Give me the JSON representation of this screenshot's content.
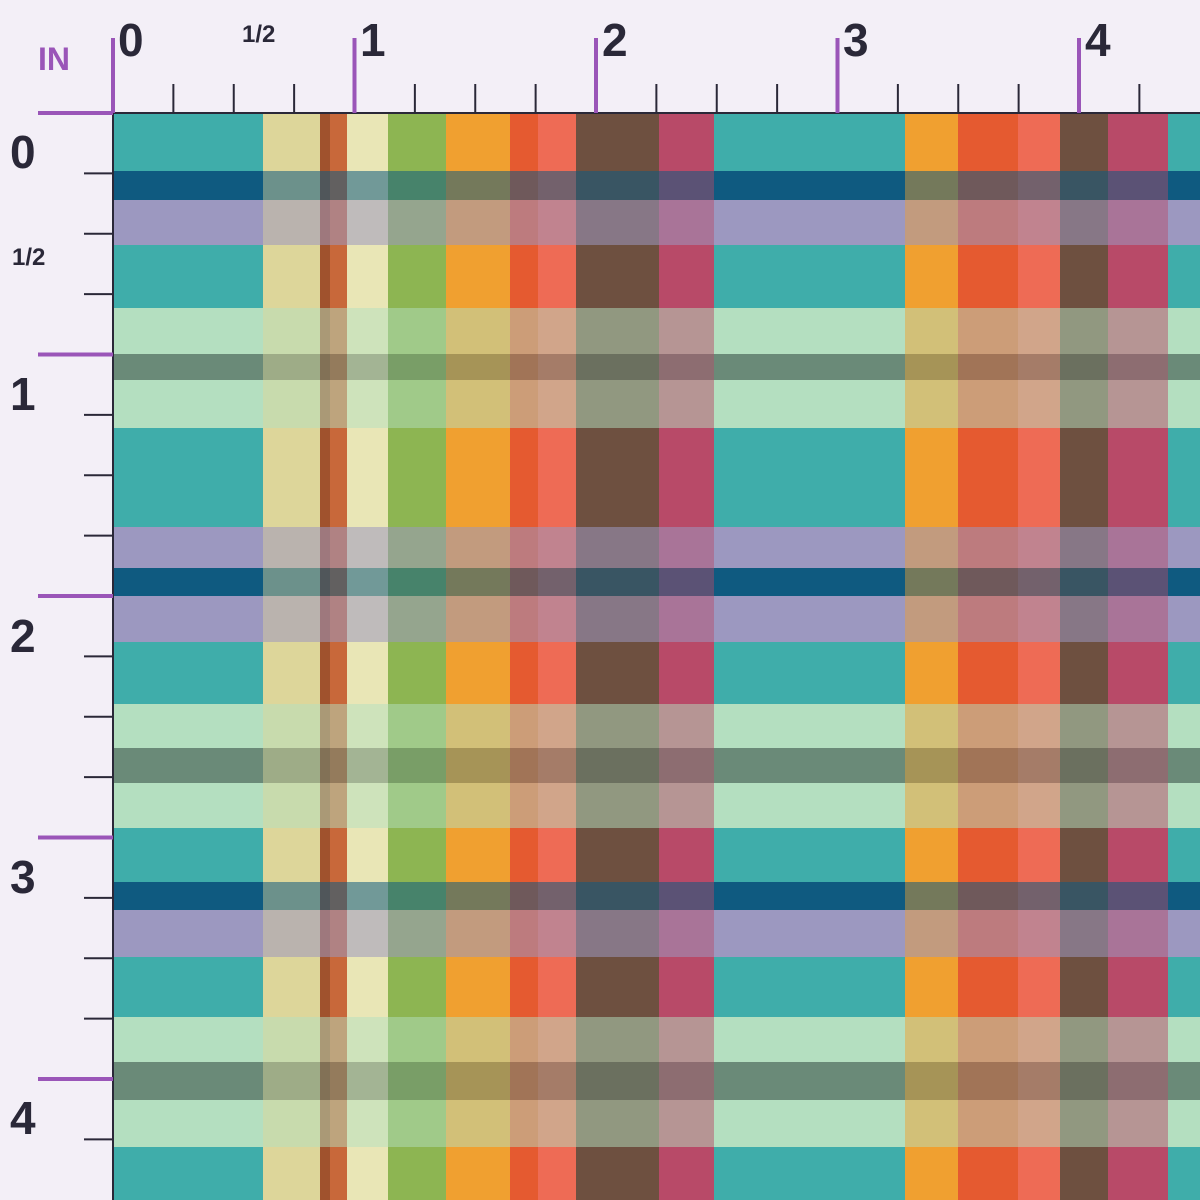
{
  "ruler": {
    "unit": "IN",
    "top_labels": [
      "0",
      "1/2",
      "1",
      "2",
      "3",
      "4"
    ],
    "left_labels": [
      "0",
      "1/2",
      "1",
      "2",
      "3",
      "4"
    ]
  }
}
